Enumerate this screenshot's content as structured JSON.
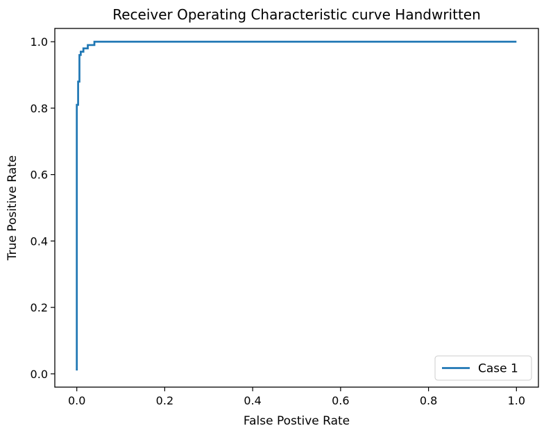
{
  "chart_data": {
    "type": "line",
    "title": "Receiver Operating Characteristic curve Handwritten",
    "xlabel": "False Postive Rate",
    "ylabel": "True Positive Rate",
    "xlim": [
      -0.05,
      1.05
    ],
    "ylim": [
      -0.04,
      1.04
    ],
    "xticks": [
      0.0,
      0.2,
      0.4,
      0.6,
      0.8,
      1.0
    ],
    "xtick_labels": [
      "0.0",
      "0.2",
      "0.4",
      "0.6",
      "0.8",
      "1.0"
    ],
    "yticks": [
      0.0,
      0.2,
      0.4,
      0.6,
      0.8,
      1.0
    ],
    "ytick_labels": [
      "0.0",
      "0.2",
      "0.4",
      "0.6",
      "0.8",
      "1.0"
    ],
    "grid": false,
    "legend": {
      "placement": "lower-right"
    },
    "series": [
      {
        "name": "Case 1",
        "color": "#1f77b4",
        "x": [
          0.0,
          0.0,
          0.003,
          0.003,
          0.006,
          0.006,
          0.009,
          0.009,
          0.015,
          0.015,
          0.025,
          0.025,
          0.04,
          0.04,
          0.055,
          0.055,
          1.0
        ],
        "y": [
          0.01,
          0.81,
          0.81,
          0.88,
          0.88,
          0.96,
          0.96,
          0.97,
          0.97,
          0.98,
          0.98,
          0.99,
          0.99,
          1.0,
          1.0,
          1.0,
          1.0
        ]
      }
    ]
  }
}
